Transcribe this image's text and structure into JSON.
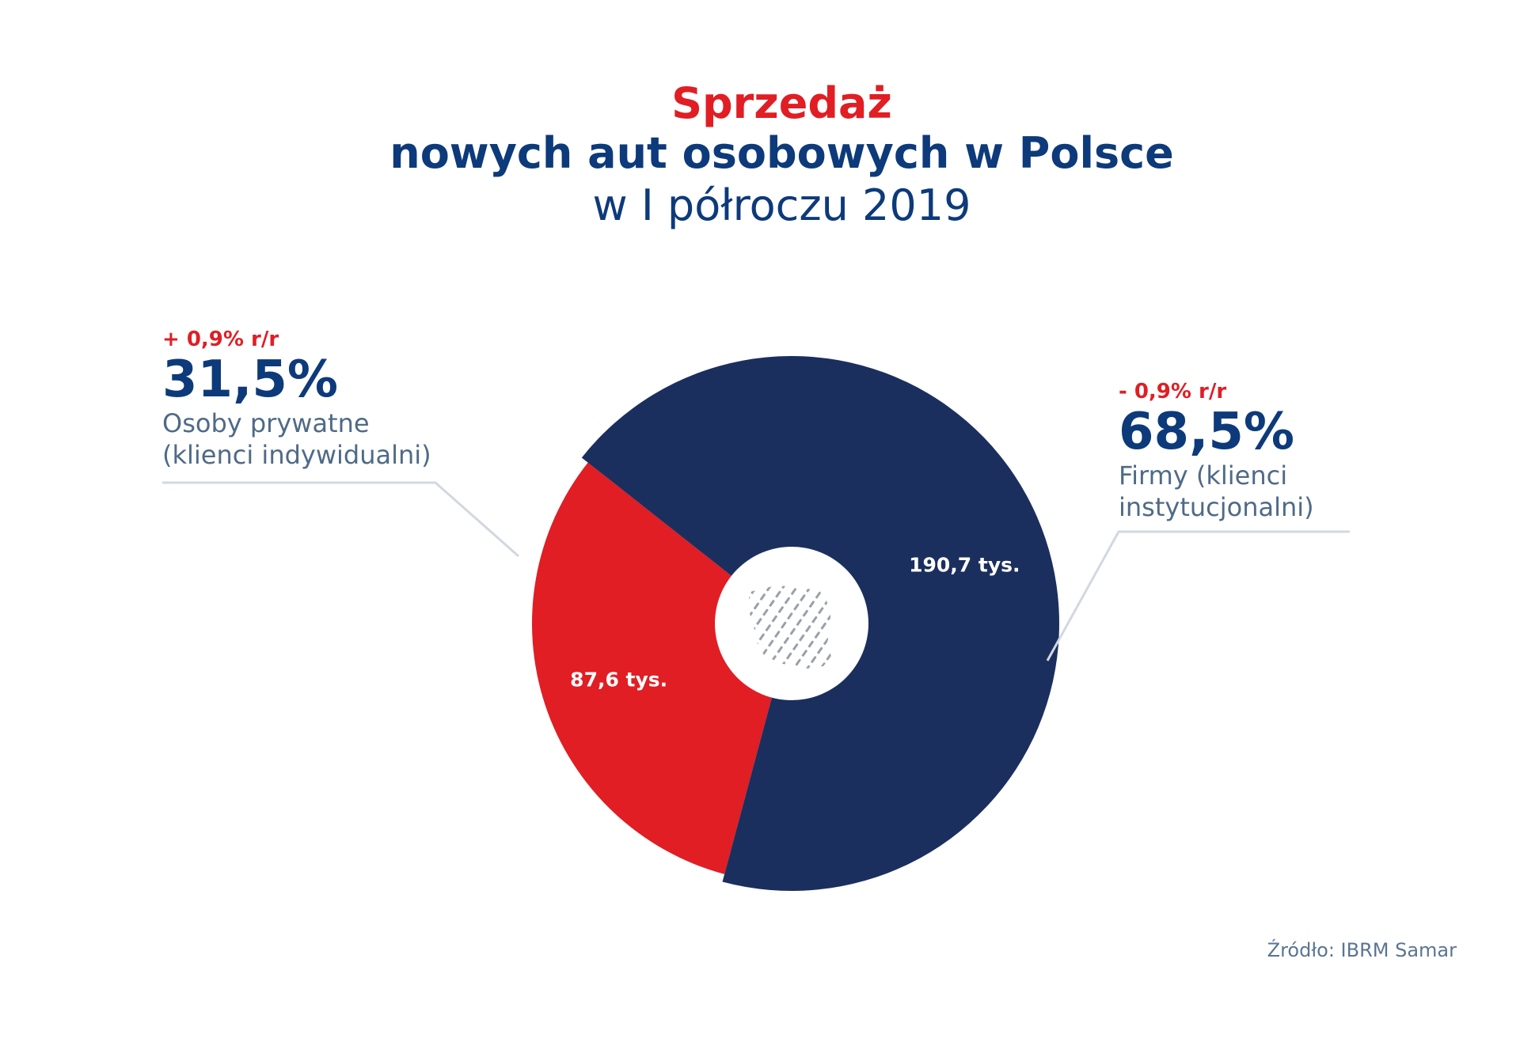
{
  "title": {
    "line1": "Sprzedaż",
    "line2": "nowych aut osobowych w Polsce",
    "line3": "w I półroczu 2019"
  },
  "colors": {
    "red": "#e01e24",
    "navy": "#1b2f5e",
    "title_blue": "#0d3a7a",
    "connector": "#d3d8df"
  },
  "center_icon": "poland-map-icon",
  "source": "Źródło: IBRM Samar",
  "chart_data": {
    "type": "pie",
    "style": "donut",
    "unit": "tys.",
    "slices": [
      {
        "name": "Osoby prywatne (klienci indywidualni)",
        "category_line1": "Osoby prywatne",
        "category_line2": "(klienci indywidualni)",
        "value": 87.6,
        "value_label": "87,6 tys.",
        "share_label": "31,5%",
        "change_label": "+ 0,9% r/r",
        "color": "#e01e24"
      },
      {
        "name": "Firmy (klienci instytucjonalni)",
        "category_line1": "Firmy (klienci",
        "category_line2": "instytucjonalni)",
        "value": 190.7,
        "value_label": "190,7 tys.",
        "share_label": "68,5%",
        "change_label": "- 0,9% r/r",
        "color": "#1b2f5e"
      }
    ]
  }
}
